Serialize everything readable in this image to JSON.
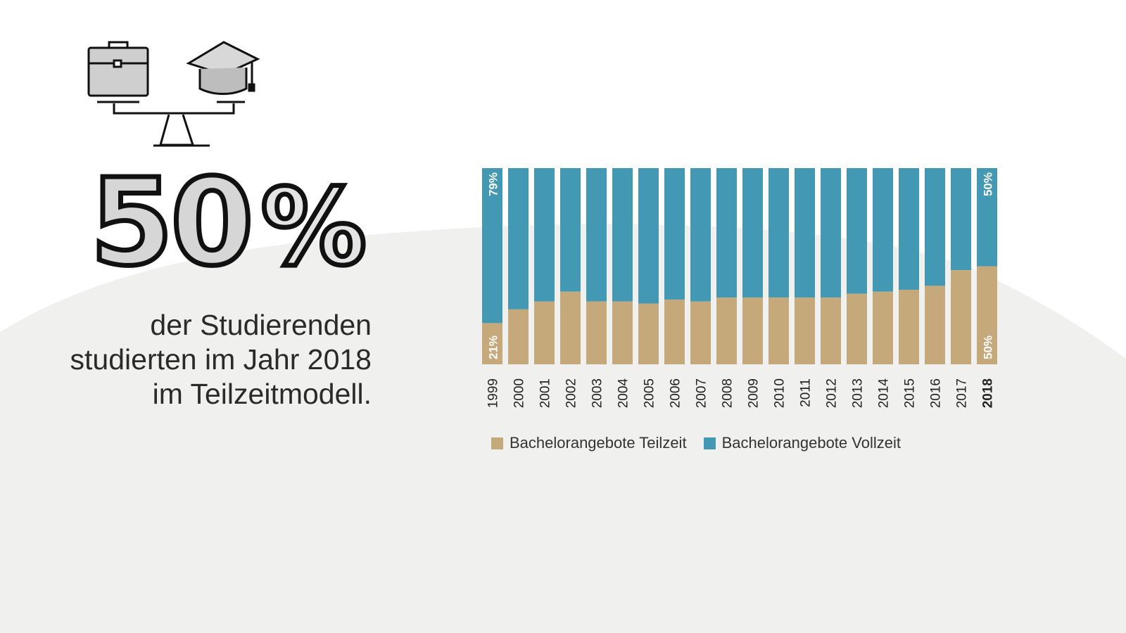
{
  "headline": {
    "value": "50%",
    "caption_lines": [
      "der Studierenden",
      "studierten im Jahr 2018",
      "im Teilzeitmodell."
    ]
  },
  "icons": [
    "briefcase-icon",
    "graduation-cap-icon",
    "balance-scale-icon"
  ],
  "colors": {
    "teilzeit": "#c6a97b",
    "vollzeit": "#4399b4",
    "background_hill": "#f0f0ef"
  },
  "chart_data": {
    "type": "bar",
    "stacked": true,
    "normalized": true,
    "categories": [
      "1999",
      "2000",
      "2001",
      "2002",
      "2003",
      "2004",
      "2005",
      "2006",
      "2007",
      "2008",
      "2009",
      "2010",
      "2011",
      "2012",
      "2013",
      "2014",
      "2015",
      "2016",
      "2017",
      "2018"
    ],
    "series": [
      {
        "name": "Bachelorangebote Teilzeit",
        "values": [
          21,
          28,
          32,
          37,
          32,
          32,
          31,
          33,
          32,
          34,
          34,
          34,
          34,
          34,
          36,
          37,
          38,
          40,
          48,
          50
        ]
      },
      {
        "name": "Bachelorangebote Vollzeit",
        "values": [
          79,
          72,
          68,
          63,
          68,
          68,
          69,
          67,
          68,
          66,
          66,
          66,
          66,
          66,
          64,
          63,
          62,
          60,
          52,
          50
        ]
      }
    ],
    "data_labels": {
      "1999_teilzeit": "21%",
      "1999_vollzeit": "79%",
      "2018_teilzeit": "50%",
      "2018_vollzeit": "50%"
    },
    "highlighted_category": "2018",
    "ylim": [
      0,
      100
    ],
    "legend_position": "bottom-left",
    "grid": false
  }
}
